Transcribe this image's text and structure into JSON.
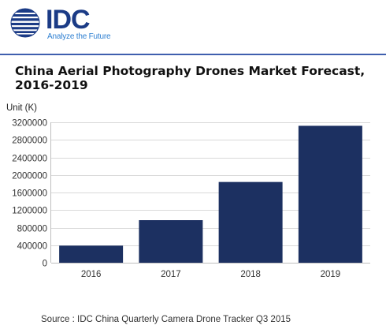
{
  "logo": {
    "text": "IDC",
    "tagline": "Analyze the Future"
  },
  "colors": {
    "brand": "#1b3b86",
    "tagline": "#2d7fd1",
    "bar": "#1c3061",
    "rule": "#3f5fae"
  },
  "source": "Source : IDC China Quarterly Camera Drone Tracker Q3 2015",
  "chart_data": {
    "type": "bar",
    "title": "China Aerial Photography Drones Market Forecast, 2016-2019",
    "ylabel": "Unit (K)",
    "xlabel": "",
    "categories": [
      "2016",
      "2017",
      "2018",
      "2019"
    ],
    "values": [
      390000,
      970000,
      1840000,
      3120000
    ],
    "ylim": [
      0,
      3200000
    ],
    "yticks": [
      0,
      400000,
      800000,
      1200000,
      1600000,
      2000000,
      2400000,
      2800000,
      3200000
    ],
    "ytick_labels": [
      "0",
      "400000",
      "800000",
      "1200000",
      "1600000",
      "2000000",
      "2400000",
      "2800000",
      "3200000"
    ],
    "grid": true
  }
}
